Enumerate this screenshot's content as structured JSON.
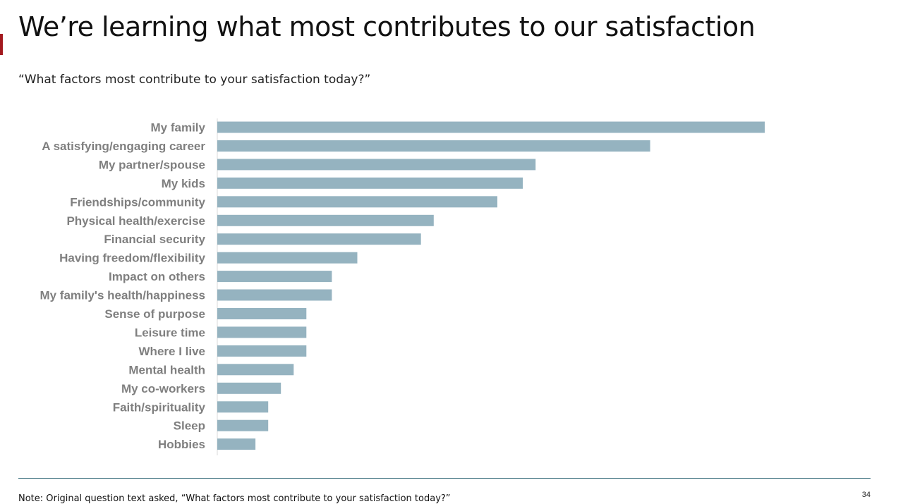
{
  "slide": {
    "title": "We’re learning what most contributes to our satisfaction",
    "subtitle": "“What factors most contribute to your satisfaction today?”",
    "footnote": "Note: Original question text asked, “What factors most contribute to your satisfaction today?”",
    "page_number": "34",
    "accent_color": "#a3191e"
  },
  "chart_data": {
    "type": "bar",
    "orientation": "horizontal",
    "title": "What factors most contribute to your satisfaction today?",
    "xlabel": "",
    "ylabel": "",
    "categories": [
      "My family",
      "A satisfying/engaging career",
      "My partner/spouse",
      "My kids",
      "Friendships/community",
      "Physical health/exercise",
      "Financial security",
      "Having freedom/flexibility",
      "Impact on others",
      "My family's health/happiness",
      "Sense of purpose",
      "Leisure time",
      "Where I live",
      "Mental health",
      "My co-workers",
      "Faith/spirituality",
      "Sleep",
      "Hobbies"
    ],
    "values": [
      43,
      34,
      25,
      24,
      22,
      17,
      16,
      11,
      9,
      9,
      7,
      7,
      7,
      6,
      5,
      4,
      4,
      3
    ],
    "xlim": [
      0,
      43
    ],
    "grid": false,
    "bar_color": "#95b3c0"
  }
}
